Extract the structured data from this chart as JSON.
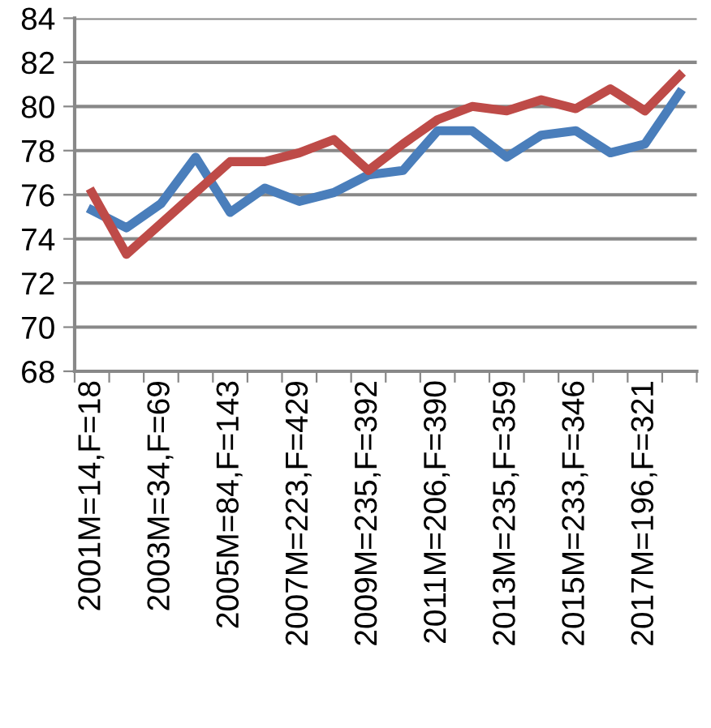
{
  "chart_data": {
    "type": "line",
    "categories": [
      "2001M=14,F=18",
      null,
      "2003M=34,F=69",
      null,
      "2005M=84,F=143",
      null,
      "2007M=223,F=429",
      null,
      "2009M=235,F=392",
      null,
      "2011M=206,F=390",
      null,
      "2013M=235,F=359",
      null,
      "2015M=233,F=346",
      null,
      "2017M=196,F=321",
      null
    ],
    "series": [
      {
        "color": "#4a7ebb",
        "values": [
          75.3,
          74.5,
          75.6,
          77.7,
          75.2,
          76.3,
          75.7,
          76.1,
          76.9,
          77.1,
          78.9,
          78.9,
          77.7,
          78.7,
          78.9,
          77.9,
          78.3,
          80.6
        ]
      },
      {
        "color": "#be4b48",
        "values": [
          76.1,
          73.3,
          74.7,
          76.1,
          77.5,
          77.5,
          77.9,
          78.5,
          77.1,
          78.3,
          79.4,
          80.0,
          79.8,
          80.3,
          79.9,
          80.8,
          79.8,
          81.4
        ]
      }
    ],
    "ylim": [
      68,
      84
    ],
    "yticks": [
      68,
      70,
      72,
      74,
      76,
      78,
      80,
      82,
      84
    ],
    "grid": "y",
    "legend": false,
    "marker": "none",
    "line_style": "solid"
  }
}
